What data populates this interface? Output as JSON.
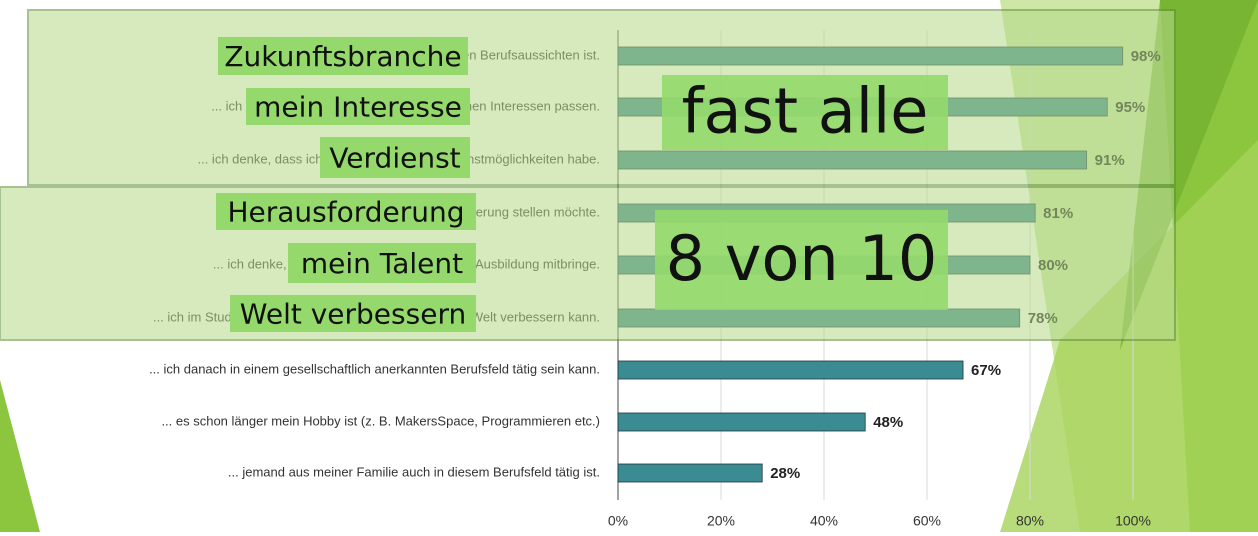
{
  "chart_data": {
    "type": "bar",
    "orientation": "horizontal",
    "categories": [
      "... es eine Branche mit guten Berufsaussichten ist.",
      "... ich denke, dass die Studieninhalte zu meinen Interessen passen.",
      "... ich denke, dass ich später damit gute Verdienstmöglichkeiten habe.",
      "... ich mich einer Herausforderung stellen möchte.",
      "... ich denke, dass ich ein gutes Talent für die Ausbildung mitbringe.",
      "... ich im Studium Dinge lernen kann, mit denen ich die Welt verbessern kann.",
      "... ich danach in einem gesellschaftlich anerkannten Berufsfeld tätig sein kann.",
      "... es schon länger mein Hobby ist (z. B. MakersSpace, Programmieren etc.)",
      "... jemand aus meiner Familie auch in diesem Berufsfeld tätig ist."
    ],
    "values": [
      98,
      95,
      91,
      81,
      80,
      78,
      67,
      48,
      28
    ],
    "value_labels": [
      "98%",
      "95%",
      "91%",
      "81%",
      "80%",
      "78%",
      "67%",
      "48%",
      "28%"
    ],
    "color": "#3b8b92",
    "xlim": [
      0,
      100
    ],
    "xticks": [
      {
        "value": 0,
        "label": "0%"
      },
      {
        "value": 20,
        "label": "20%"
      },
      {
        "value": 40,
        "label": "40%"
      },
      {
        "value": 60,
        "label": "60%"
      },
      {
        "value": 80,
        "label": "80%"
      },
      {
        "value": 100,
        "label": "100%"
      }
    ],
    "grid": true,
    "keywords": [
      "Zukunftsbranche",
      "mein Interesse",
      "Verdienst",
      "Herausforderung",
      "mein Talent",
      "Welt verbessern"
    ],
    "annotations": [
      "fast alle",
      "8 von 10"
    ]
  }
}
